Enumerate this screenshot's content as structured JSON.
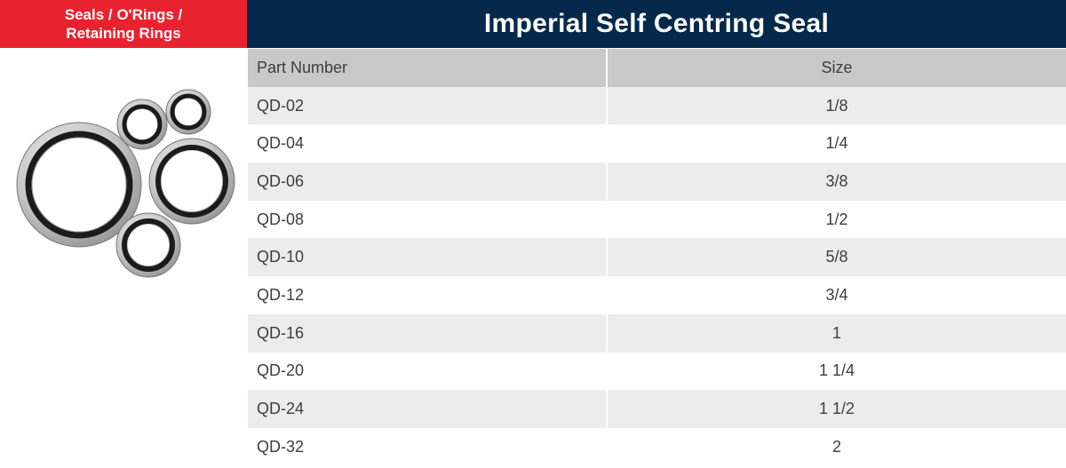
{
  "category": {
    "line1": "Seals / O'Rings /",
    "line2": "Retaining Rings"
  },
  "title": "Imperial Self Centring Seal",
  "colors": {
    "category_bg": "#e8222f",
    "title_bg": "#05294a",
    "header_bg": "#c9c9c9",
    "row_alt_bg": "#ececec"
  },
  "image": {
    "icon": "bonded-seal-rings-photo"
  },
  "table": {
    "headers": {
      "part_number": "Part Number",
      "size": "Size"
    },
    "rows": [
      {
        "part": "QD-02",
        "size": "1/8"
      },
      {
        "part": "QD-04",
        "size": "1/4"
      },
      {
        "part": "QD-06",
        "size": "3/8"
      },
      {
        "part": "QD-08",
        "size": "1/2"
      },
      {
        "part": "QD-10",
        "size": "5/8"
      },
      {
        "part": "QD-12",
        "size": "3/4"
      },
      {
        "part": "QD-16",
        "size": "1"
      },
      {
        "part": "QD-20",
        "size": "1 1/4"
      },
      {
        "part": "QD-24",
        "size": "1 1/2"
      },
      {
        "part": "QD-32",
        "size": "2"
      }
    ]
  }
}
